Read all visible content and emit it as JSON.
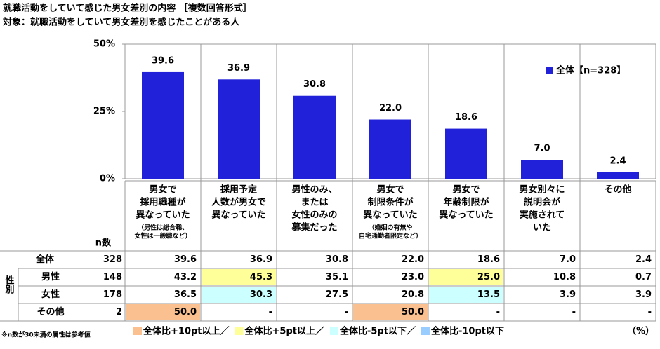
{
  "chart_data": {
    "type": "bar",
    "title": "就職活動をしていて感じた男女差別の内容 ［複数回答形式］",
    "subtitle": "対象：就職活動をしていて男女差別を感じたことがある人",
    "categories": [
      [
        "男女で",
        "採用職種が",
        "異なっていた"
      ],
      [
        "採用予定",
        "人数が男女で",
        "異なっていた"
      ],
      [
        "男性のみ、",
        "または",
        "女性のみの",
        "募集だった"
      ],
      [
        "男女で",
        "制限条件が",
        "異なっていた"
      ],
      [
        "男女で",
        "年齢制限が",
        "異なっていた"
      ],
      [
        "男女別々に",
        "説明会が",
        "実施されて",
        "いた"
      ],
      [
        "その他"
      ]
    ],
    "category_notes": [
      [
        "（男性は総合職、",
        "女性は一般職など）"
      ],
      null,
      null,
      [
        "（婚姻の有無や",
        "自宅通勤者限定など）"
      ],
      null,
      null,
      null
    ],
    "series": [
      {
        "name": "全体【n=328】",
        "color": "#2121d9",
        "values": [
          39.6,
          36.9,
          30.8,
          22.0,
          18.6,
          7.0,
          2.4
        ],
        "value_labels": [
          "39.6",
          "36.9",
          "30.8",
          "22.0",
          "18.6",
          "7.0",
          "2.4"
        ]
      }
    ],
    "ylim": [
      0,
      50
    ],
    "yticks": [
      {
        "value": 0,
        "label": "0%"
      },
      {
        "value": 25,
        "label": "25%"
      },
      {
        "value": 50,
        "label": "50%"
      }
    ],
    "legend": "top-right"
  },
  "table": {
    "n_header": "n数",
    "group_label": "性別",
    "rows": [
      {
        "label": "全体",
        "n": "328",
        "cells": [
          "39.6",
          "36.9",
          "30.8",
          "22.0",
          "18.6",
          "7.0",
          "2.4"
        ],
        "colors": [
          null,
          null,
          null,
          null,
          null,
          null,
          null
        ]
      },
      {
        "label": "男性",
        "n": "148",
        "cells": [
          "43.2",
          "45.3",
          "35.1",
          "23.0",
          "25.0",
          "10.8",
          "0.7"
        ],
        "colors": [
          null,
          "#ffff99",
          null,
          null,
          "#ffff99",
          null,
          null
        ]
      },
      {
        "label": "女性",
        "n": "178",
        "cells": [
          "36.5",
          "30.3",
          "27.5",
          "20.8",
          "13.5",
          "3.9",
          "3.9"
        ],
        "colors": [
          null,
          "#ccffff",
          null,
          null,
          "#ccffff",
          null,
          null
        ]
      },
      {
        "label": "その他",
        "n": "2",
        "cells": [
          "50.0",
          "-",
          "-",
          "50.0",
          "-",
          "-",
          "-"
        ],
        "colors": [
          "#fac090",
          null,
          null,
          "#fac090",
          null,
          null,
          null
        ]
      }
    ],
    "legend": [
      {
        "label": "全体比+10pt以上／",
        "color": "#fac090"
      },
      {
        "label": "全体比+5pt以上／",
        "color": "#ffff99"
      },
      {
        "label": "全体比-5pt以下／",
        "color": "#ccffff"
      },
      {
        "label": "全体比-10pt以下",
        "color": "#99ccff"
      }
    ],
    "footnote": "※n数が30未満の属性は参考値",
    "unit": "（%）"
  }
}
